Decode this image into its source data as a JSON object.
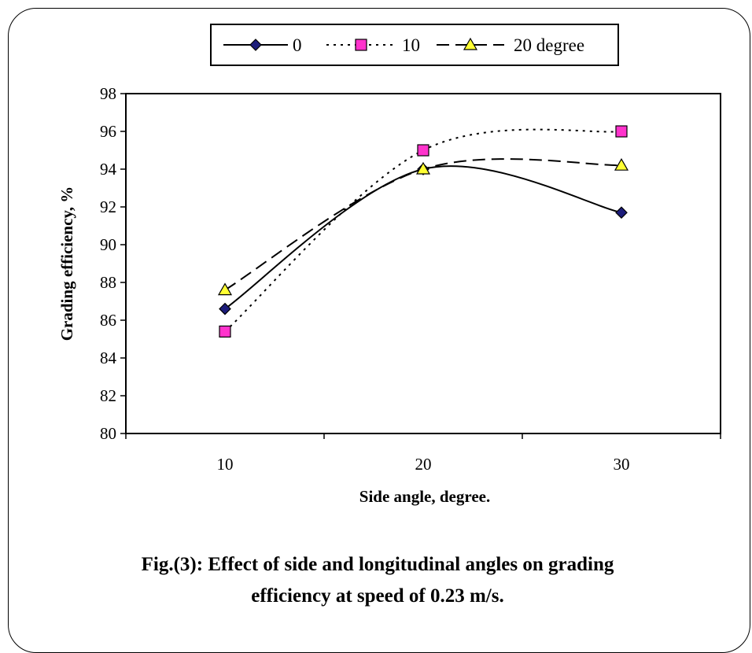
{
  "caption": {
    "line1": "Fig.(3): Effect of side and longitudinal angles on grading",
    "line2": "efficiency at speed of 0.23 m/s."
  },
  "chart_data": {
    "type": "line",
    "title": "",
    "xlabel": "Side angle, degree.",
    "ylabel": "Grading efficiency, %",
    "categories": [
      "10",
      "20",
      "30"
    ],
    "ylim": [
      80,
      98
    ],
    "yticks": [
      "80",
      "82",
      "84",
      "86",
      "88",
      "90",
      "92",
      "94",
      "96",
      "98"
    ],
    "grid": false,
    "legend_position": "top",
    "series": [
      {
        "name": "0",
        "values": [
          86.6,
          94.0,
          91.7
        ],
        "color": "#000000",
        "marker": "diamond",
        "marker_color": "#1c1c7a",
        "line_style": "solid"
      },
      {
        "name": "10",
        "values": [
          85.4,
          95.0,
          96.0
        ],
        "color": "#000000",
        "marker": "square",
        "marker_color": "#ff33cc",
        "line_style": "dotted"
      },
      {
        "name": "20 degree",
        "values": [
          87.6,
          94.0,
          94.2
        ],
        "color": "#000000",
        "marker": "triangle",
        "marker_color": "#ffff33",
        "line_style": "dashed"
      }
    ]
  }
}
